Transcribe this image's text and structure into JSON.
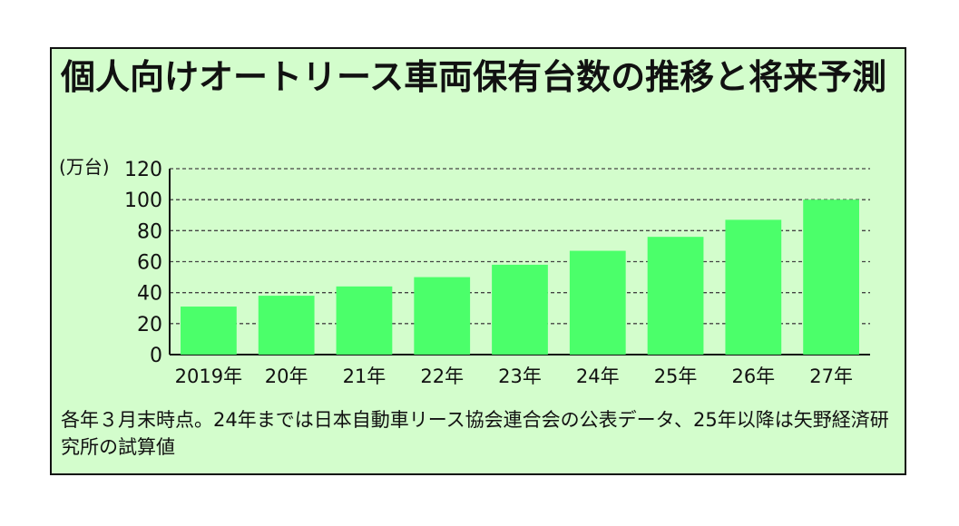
{
  "chart_data": {
    "type": "bar",
    "title": "個人向けオートリース車両保有台数の推移と将来予測",
    "unit_label": "(万台)",
    "categories": [
      "2019年",
      "20年",
      "21年",
      "22年",
      "23年",
      "24年",
      "25年",
      "26年",
      "27年"
    ],
    "values": [
      31,
      38,
      44,
      50,
      58,
      67,
      76,
      87,
      100
    ],
    "ylim": [
      0,
      120
    ],
    "yticks": [
      0,
      20,
      40,
      60,
      80,
      100,
      120
    ],
    "grid": true,
    "grid_style": "dashed",
    "legend": "none",
    "note": "各年３月末時点。24年までは日本自動車リース協会連合会の公表データ、25年以降は矢野経済研究所の試算値"
  },
  "colors": {
    "background": "#d3fdcc",
    "bar": "#4bff6a",
    "border": "#111111",
    "grid": "#444444"
  }
}
